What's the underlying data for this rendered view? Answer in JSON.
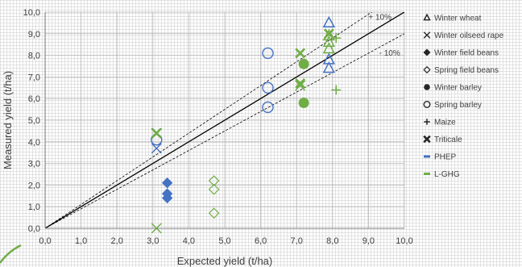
{
  "chart_data": {
    "type": "scatter",
    "title": "",
    "xlabel": "Expected yield (t/ha)",
    "ylabel": "Measured yield (t/ha)",
    "xlim": [
      0,
      10
    ],
    "ylim": [
      0,
      10
    ],
    "x_ticks": [
      "0,0",
      "1,0",
      "2,0",
      "3,0",
      "4,0",
      "5,0",
      "6,0",
      "7,0",
      "8,0",
      "9,0",
      "10,0"
    ],
    "y_ticks": [
      "0,0",
      "1,0",
      "2,0",
      "3,0",
      "4,0",
      "5,0",
      "6,0",
      "7,0",
      "8,0",
      "9,0",
      "10,0"
    ],
    "grid": true,
    "legend_position": "right",
    "reference_lines": [
      {
        "type": "1:1",
        "slope": 1.0,
        "style": "solid",
        "label": ""
      },
      {
        "type": "+10%",
        "slope": 1.1,
        "style": "dashed",
        "label": "+ 10%"
      },
      {
        "type": "-10%",
        "slope": 0.9,
        "style": "dashed",
        "label": "- 10%"
      }
    ],
    "colors": {
      "PHEP": "#4472C4",
      "L-GHG": "#70AD47"
    },
    "legend": [
      {
        "label": "Winter wheat",
        "marker": "triangle-open"
      },
      {
        "label": "Winter oilseed rape",
        "marker": "x"
      },
      {
        "label": "Winter field beans",
        "marker": "diamond-filled"
      },
      {
        "label": "Spring field beans",
        "marker": "diamond-open"
      },
      {
        "label": "Winter barley",
        "marker": "circle-filled"
      },
      {
        "label": "Spring barley",
        "marker": "circle-open"
      },
      {
        "label": "Maize",
        "marker": "plus"
      },
      {
        "label": "Triticale",
        "marker": "x-bold"
      },
      {
        "label": "PHEP",
        "marker": "line",
        "color": "#4472C4"
      },
      {
        "label": "L-GHG",
        "marker": "line",
        "color": "#70AD47"
      }
    ],
    "series": [
      {
        "crop": "Winter wheat",
        "group": "PHEP",
        "marker": "triangle-open",
        "points": [
          [
            7.9,
            9.5
          ],
          [
            7.9,
            7.8
          ],
          [
            7.9,
            7.4
          ]
        ]
      },
      {
        "crop": "Winter wheat",
        "group": "L-GHG",
        "marker": "triangle-open",
        "points": [
          [
            7.9,
            8.9
          ],
          [
            7.9,
            8.6
          ],
          [
            7.9,
            8.3
          ]
        ]
      },
      {
        "crop": "Winter oilseed rape",
        "group": "PHEP",
        "marker": "x",
        "points": [
          [
            3.1,
            4.4
          ],
          [
            3.1,
            3.7
          ]
        ]
      },
      {
        "crop": "Winter oilseed rape",
        "group": "L-GHG",
        "marker": "x",
        "points": [
          [
            3.1,
            0.0
          ],
          [
            7.1,
            6.6
          ]
        ]
      },
      {
        "crop": "Winter field beans",
        "group": "PHEP",
        "marker": "diamond-filled",
        "points": [
          [
            3.4,
            2.1
          ],
          [
            3.4,
            1.6
          ],
          [
            3.4,
            1.4
          ]
        ]
      },
      {
        "crop": "Spring field beans",
        "group": "L-GHG",
        "marker": "diamond-open",
        "points": [
          [
            4.7,
            2.2
          ],
          [
            4.7,
            1.8
          ],
          [
            4.7,
            0.7
          ]
        ]
      },
      {
        "crop": "Winter barley",
        "group": "L-GHG",
        "marker": "circle-filled",
        "points": [
          [
            7.2,
            7.6
          ],
          [
            7.2,
            5.8
          ]
        ]
      },
      {
        "crop": "Spring barley",
        "group": "PHEP",
        "marker": "circle-open",
        "points": [
          [
            6.2,
            8.1
          ],
          [
            6.2,
            6.5
          ],
          [
            6.2,
            5.6
          ],
          [
            3.1,
            4.1
          ]
        ]
      },
      {
        "crop": "Maize",
        "group": "L-GHG",
        "marker": "plus",
        "points": [
          [
            8.1,
            8.8
          ],
          [
            8.1,
            6.4
          ]
        ]
      },
      {
        "crop": "Triticale",
        "group": "L-GHG",
        "marker": "x-bold",
        "points": [
          [
            3.1,
            4.4
          ],
          [
            7.1,
            8.1
          ],
          [
            7.1,
            6.7
          ],
          [
            7.9,
            9.0
          ]
        ]
      }
    ]
  }
}
